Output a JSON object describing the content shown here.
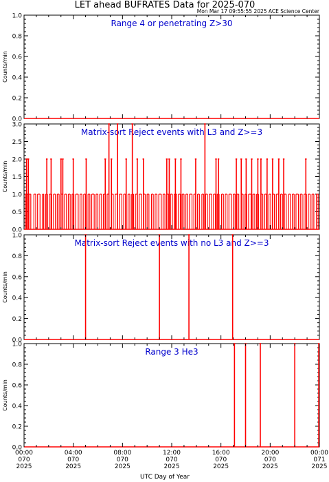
{
  "title": "LET ahead BUFRATES Data for 2025-070",
  "timestamp": "Mon Mar 17 09:55:55 2025 ACE Science Center",
  "xlabel": "UTC Day of Year",
  "x_ticks": [
    {
      "l1": "00:00",
      "l2": "070",
      "l3": "2025"
    },
    {
      "l1": "04:00",
      "l2": "070",
      "l3": "2025"
    },
    {
      "l1": "08:00",
      "l2": "070",
      "l3": "2025"
    },
    {
      "l1": "12:00",
      "l2": "070",
      "l3": "2025"
    },
    {
      "l1": "16:00",
      "l2": "070",
      "l3": "2025"
    },
    {
      "l1": "20:00",
      "l2": "070",
      "l3": "2025"
    },
    {
      "l1": "00:00",
      "l2": "071",
      "l3": "2025"
    }
  ],
  "colors": {
    "data": "#ff0000",
    "panel_title": "#0000cc",
    "axes": "#000000"
  },
  "chart_data": [
    {
      "type": "line",
      "title": "Range 4 or  penetrating Z>30",
      "ylabel": "Counts/min",
      "ylim": [
        0,
        1.0
      ],
      "yticks": [
        "0.0",
        "0.2",
        "0.4",
        "0.6",
        "0.8",
        "1.0"
      ],
      "xlim_hours": [
        0,
        24
      ],
      "baseline": 0,
      "spikes": []
    },
    {
      "type": "line",
      "title": "Matrix-sort Reject events with L3 and Z>=3",
      "ylabel": "Counts/min",
      "ylim": [
        0,
        3.0
      ],
      "yticks": [
        "0.0",
        "0.5",
        "1.0",
        "1.5",
        "2.0",
        "2.5",
        "3.0"
      ],
      "xlim_hours": [
        0,
        24
      ],
      "baseline": 0,
      "dense_ones_hours": [
        0.1,
        0.25,
        0.4,
        0.55,
        0.8,
        0.95,
        1.1,
        1.3,
        1.5,
        1.6,
        1.75,
        1.9,
        2.05,
        2.25,
        2.4,
        2.55,
        2.7,
        2.85,
        3.0,
        3.15,
        3.3,
        3.45,
        3.6,
        3.75,
        3.9,
        4.05,
        4.2,
        4.4,
        4.55,
        4.7,
        4.85,
        5.0,
        5.2,
        5.35,
        5.5,
        5.7,
        5.85,
        6.0,
        6.15,
        6.3,
        6.45,
        6.6,
        6.75,
        6.9,
        7.1,
        7.25,
        7.4,
        7.6,
        7.75,
        7.95,
        8.1,
        8.25,
        8.45,
        8.6,
        8.75,
        8.9,
        9.05,
        9.2,
        9.35,
        9.55,
        9.7,
        9.85,
        10.0,
        10.15,
        10.35,
        10.5,
        10.65,
        10.8,
        10.95,
        11.15,
        11.3,
        11.45,
        11.6,
        11.75,
        11.9,
        12.05,
        12.2,
        12.4,
        12.55,
        12.7,
        12.85,
        13.0,
        13.15,
        13.3,
        13.45,
        13.65,
        13.8,
        13.95,
        14.1,
        14.25,
        14.45,
        14.6,
        14.75,
        14.9,
        15.05,
        15.25,
        15.4,
        15.55,
        15.7,
        15.85,
        16.05,
        16.2,
        16.35,
        16.5,
        16.65,
        16.85,
        17.0,
        17.15,
        17.3,
        17.45,
        17.65,
        17.8,
        17.95,
        18.1,
        18.25,
        18.45,
        18.6,
        18.75,
        18.9,
        19.05,
        19.25,
        19.4,
        19.55,
        19.7,
        19.9,
        20.05,
        20.2,
        20.35,
        20.5,
        20.7,
        20.85,
        21.0,
        21.15,
        21.3,
        21.5,
        21.65,
        21.8,
        21.95,
        22.1,
        22.3,
        22.45,
        22.6,
        22.75,
        22.95,
        23.1,
        23.25,
        23.4,
        23.55,
        23.75,
        23.9
      ],
      "spikes": [
        {
          "x": 0.2,
          "y": 2
        },
        {
          "x": 0.35,
          "y": 2
        },
        {
          "x": 1.85,
          "y": 2
        },
        {
          "x": 2.2,
          "y": 2
        },
        {
          "x": 3.0,
          "y": 2
        },
        {
          "x": 3.15,
          "y": 2
        },
        {
          "x": 4.0,
          "y": 2
        },
        {
          "x": 5.05,
          "y": 2
        },
        {
          "x": 6.6,
          "y": 2
        },
        {
          "x": 6.9,
          "y": 3
        },
        {
          "x": 7.1,
          "y": 2
        },
        {
          "x": 7.6,
          "y": 3
        },
        {
          "x": 8.3,
          "y": 2
        },
        {
          "x": 8.8,
          "y": 3
        },
        {
          "x": 9.2,
          "y": 2
        },
        {
          "x": 9.7,
          "y": 2
        },
        {
          "x": 11.6,
          "y": 2
        },
        {
          "x": 11.8,
          "y": 2
        },
        {
          "x": 12.3,
          "y": 2
        },
        {
          "x": 12.75,
          "y": 2
        },
        {
          "x": 13.95,
          "y": 2
        },
        {
          "x": 14.7,
          "y": 3
        },
        {
          "x": 15.6,
          "y": 2
        },
        {
          "x": 15.8,
          "y": 2
        },
        {
          "x": 17.25,
          "y": 2
        },
        {
          "x": 17.65,
          "y": 2
        },
        {
          "x": 18.05,
          "y": 2
        },
        {
          "x": 18.5,
          "y": 2
        },
        {
          "x": 19.0,
          "y": 2
        },
        {
          "x": 19.25,
          "y": 2
        },
        {
          "x": 19.75,
          "y": 2
        },
        {
          "x": 20.2,
          "y": 2
        },
        {
          "x": 20.7,
          "y": 2
        },
        {
          "x": 21.1,
          "y": 2
        },
        {
          "x": 22.9,
          "y": 2
        }
      ]
    },
    {
      "type": "line",
      "title": "Matrix-sort Reject events with no L3 and Z>=3",
      "ylabel": "Counts/min",
      "ylim": [
        0,
        1.0
      ],
      "yticks": [
        "0.0",
        "0.2",
        "0.4",
        "0.6",
        "0.8",
        "1.0"
      ],
      "xlim_hours": [
        0,
        24
      ],
      "baseline": 0,
      "spikes": [
        {
          "x": 5.0,
          "y": 1
        },
        {
          "x": 11.0,
          "y": 1
        },
        {
          "x": 13.4,
          "y": 1
        },
        {
          "x": 16.95,
          "y": 1
        }
      ]
    },
    {
      "type": "line",
      "title": "Range 3 He3",
      "ylabel": "Counts/min",
      "ylim": [
        0,
        1.0
      ],
      "yticks": [
        "0.0",
        "0.2",
        "0.4",
        "0.6",
        "0.8",
        "1.0"
      ],
      "xlim_hours": [
        0,
        24
      ],
      "baseline": 0,
      "spikes": [
        {
          "x": 17.1,
          "y": 1
        },
        {
          "x": 18.0,
          "y": 1
        },
        {
          "x": 19.2,
          "y": 1
        },
        {
          "x": 22.0,
          "y": 1
        },
        {
          "x": 23.95,
          "y": 1
        }
      ]
    }
  ]
}
